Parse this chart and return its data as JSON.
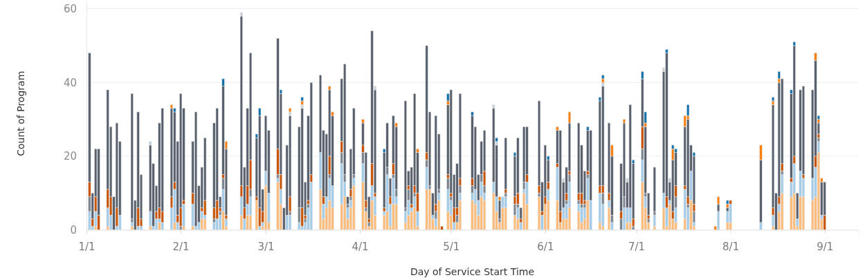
{
  "chart_data": {
    "type": "bar",
    "stacked": true,
    "xlabel": "Day of Service Start Time",
    "ylabel": "Count of Program",
    "x": [
      "--01-02",
      "--01-03",
      "--01-04",
      "--01-05",
      "--01-08",
      "--01-09",
      "--01-10",
      "--01-11",
      "--01-12",
      "--01-16",
      "--01-17",
      "--01-18",
      "--01-19",
      "--01-22",
      "--01-23",
      "--01-24",
      "--01-25",
      "--01-26",
      "--01-29",
      "--01-30",
      "--01-31",
      "--02-01",
      "--02-02",
      "--02-05",
      "--02-06",
      "--02-07",
      "--02-08",
      "--02-09",
      "--02-12",
      "--02-13",
      "--02-14",
      "--02-15",
      "--02-16",
      "--02-21",
      "--02-22",
      "--02-23",
      "--02-24",
      "--02-26",
      "--02-27",
      "--02-28",
      "--03-01",
      "--03-02",
      "--03-05",
      "--03-06",
      "--03-07",
      "--03-08",
      "--03-09",
      "--03-12",
      "--03-13",
      "--03-14",
      "--03-15",
      "--03-16",
      "--03-19",
      "--03-20",
      "--03-21",
      "--03-22",
      "--03-23",
      "--03-26",
      "--03-27",
      "--03-28",
      "--03-29",
      "--03-30",
      "--04-02",
      "--04-03",
      "--04-04",
      "--04-05",
      "--04-06",
      "--04-09",
      "--04-10",
      "--04-11",
      "--04-12",
      "--04-13",
      "--04-16",
      "--04-17",
      "--04-18",
      "--04-19",
      "--04-20",
      "--04-23",
      "--04-24",
      "--04-25",
      "--04-26",
      "--04-27",
      "--04-28",
      "--04-30",
      "--05-01",
      "--05-02",
      "--05-03",
      "--05-04",
      "--05-08",
      "--05-09",
      "--05-10",
      "--05-11",
      "--05-12",
      "--05-15",
      "--05-16",
      "--05-17",
      "--05-18",
      "--05-19",
      "--05-22",
      "--05-23",
      "--05-24",
      "--05-25",
      "--05-26",
      "--05-30",
      "--05-31",
      "--06-01",
      "--06-02",
      "--06-05",
      "--06-06",
      "--06-07",
      "--06-08",
      "--06-09",
      "--06-12",
      "--06-13",
      "--06-14",
      "--06-15",
      "--06-16",
      "--06-19",
      "--06-20",
      "--06-22",
      "--06-23",
      "--06-26",
      "--06-27",
      "--06-28",
      "--06-29",
      "--06-30",
      "--07-03",
      "--07-04",
      "--07-05",
      "--07-07",
      "--07-10",
      "--07-11",
      "--07-12",
      "--07-13",
      "--07-14",
      "--07-17",
      "--07-18",
      "--07-19",
      "--07-20",
      "--07-27",
      "--07-28",
      "--07-31",
      "--08-01",
      "--08-11",
      "--08-15",
      "--08-16",
      "--08-17",
      "--08-18",
      "--08-21",
      "--08-22",
      "--08-23",
      "--08-24",
      "--08-25",
      "--08-28",
      "--08-29",
      "--08-30",
      "--08-31",
      "--09-01"
    ],
    "series": [
      {
        "color": "#ffbc79",
        "values": [
          0,
          0,
          1,
          0,
          1,
          0,
          0,
          0,
          0,
          1,
          0,
          0,
          0,
          1,
          0,
          0,
          2,
          0,
          0,
          2,
          0,
          0,
          1,
          1,
          0,
          0,
          3,
          3,
          0,
          0,
          0,
          5,
          1,
          4,
          0,
          4,
          4,
          8,
          0,
          1,
          12,
          2,
          13,
          7,
          0,
          0,
          0,
          0,
          0,
          0,
          0,
          0,
          11,
          3,
          6,
          8,
          6,
          7,
          9,
          3,
          6,
          12,
          13,
          5,
          1,
          8,
          4,
          4,
          5,
          1,
          7,
          7,
          2,
          4,
          5,
          6,
          1,
          11,
          11,
          3,
          1,
          8,
          0,
          5,
          4,
          0,
          2,
          8,
          8,
          7,
          4,
          9,
          8,
          10,
          5,
          2,
          6,
          6,
          4,
          3,
          0,
          10,
          7,
          9,
          0,
          7,
          8,
          8,
          2,
          3,
          3,
          6,
          5,
          2,
          3,
          8,
          0,
          2,
          1,
          6,
          0,
          0,
          0,
          2,
          2,
          0,
          13,
          6,
          2,
          1,
          6,
          1,
          7,
          3,
          2,
          3,
          0,
          8,
          1,
          0,
          0,
          2,
          2,
          0,
          1,
          0,
          5,
          10,
          9,
          10,
          1,
          9,
          9,
          8,
          9,
          21,
          3,
          0
        ]
      },
      {
        "color": "#a3cce9",
        "values": [
          5,
          1,
          4,
          0,
          5,
          4,
          0,
          1,
          4,
          1,
          0,
          1,
          1,
          4,
          1,
          3,
          1,
          2,
          6,
          9,
          2,
          0,
          6,
          6,
          1,
          2,
          2,
          1,
          2,
          3,
          4,
          6,
          2,
          5,
          3,
          3,
          5,
          0,
          1,
          1,
          4,
          8,
          1,
          4,
          0,
          4,
          4,
          2,
          1,
          2,
          6,
          13,
          10,
          4,
          3,
          6,
          6,
          11,
          4,
          3,
          2,
          2,
          5,
          0,
          0,
          4,
          5,
          1,
          10,
          6,
          7,
          2,
          3,
          4,
          1,
          3,
          4,
          6,
          0,
          1,
          2,
          2,
          0,
          6,
          4,
          2,
          0,
          2,
          2,
          4,
          4,
          4,
          2,
          3,
          4,
          0,
          3,
          3,
          0,
          3,
          2,
          1,
          6,
          0,
          4,
          0,
          3,
          9,
          0,
          3,
          4,
          7,
          2,
          4,
          3,
          6,
          8,
          8,
          6,
          2,
          2,
          0,
          6,
          4,
          4,
          0,
          6,
          3,
          0,
          3,
          4,
          5,
          1,
          0,
          4,
          8,
          6,
          8,
          1,
          0,
          5,
          3,
          5,
          2,
          3,
          0,
          2,
          5,
          4,
          8,
          2,
          7,
          5,
          6,
          8,
          3,
          1,
          0
        ]
      },
      {
        "color": "#7b848f",
        "values": [
          4,
          0,
          0,
          0,
          0,
          0,
          0,
          0,
          0,
          1,
          0,
          0,
          0,
          0,
          0,
          0,
          0,
          0,
          0,
          0,
          0,
          1,
          0,
          0,
          0,
          0,
          0,
          0,
          1,
          0,
          1,
          3,
          0,
          0,
          0,
          0,
          2,
          0,
          0,
          0,
          0,
          0,
          1,
          0,
          0,
          0,
          1,
          4,
          0,
          1,
          1,
          0,
          0,
          0,
          0,
          1,
          0,
          3,
          2,
          1,
          1,
          1,
          3,
          1,
          1,
          0,
          0,
          0,
          2,
          0,
          1,
          2,
          1,
          3,
          0,
          1,
          0,
          2,
          1,
          0,
          2,
          1,
          0,
          3,
          1,
          0,
          2,
          2,
          2,
          0,
          0,
          2,
          2,
          0,
          0,
          1,
          0,
          1,
          3,
          1,
          0,
          2,
          0,
          1,
          0,
          0,
          0,
          0,
          0,
          0,
          1,
          2,
          1,
          1,
          1,
          1,
          0,
          0,
          3,
          0,
          2,
          3,
          3,
          0,
          0,
          1,
          3,
          1,
          1,
          1,
          0,
          0,
          0,
          0,
          3,
          0,
          1,
          0,
          3,
          0,
          0,
          0,
          0,
          0,
          0,
          0,
          0,
          1,
          0,
          0,
          0,
          0,
          0,
          0,
          0,
          1,
          0,
          0
        ]
      },
      {
        "color": "#c85200",
        "values": [
          4,
          2,
          4,
          4,
          5,
          5,
          0,
          5,
          0,
          0,
          0,
          5,
          2,
          0,
          0,
          2,
          3,
          3,
          3,
          2,
          2,
          5,
          1,
          3,
          0,
          0,
          1,
          4,
          3,
          5,
          1,
          1,
          1,
          3,
          3,
          5,
          8,
          1,
          5,
          3,
          0,
          0,
          7,
          4,
          0,
          0,
          4,
          0,
          5,
          1,
          1,
          2,
          0,
          2,
          0,
          5,
          0,
          3,
          0,
          0,
          2,
          0,
          2,
          2,
          1,
          6,
          1,
          1,
          0,
          2,
          3,
          0,
          0,
          1,
          1,
          2,
          5,
          2,
          0,
          0,
          2,
          0,
          1,
          1,
          1,
          4,
          2,
          2,
          2,
          0,
          0,
          0,
          4,
          0,
          0,
          0,
          0,
          1,
          2,
          3,
          1,
          0,
          2,
          2,
          1,
          2,
          2,
          1,
          3,
          0,
          2,
          1,
          2,
          3,
          1,
          1,
          0,
          2,
          2,
          2,
          0,
          2,
          0,
          0,
          0,
          2,
          6,
          0,
          1,
          0,
          0,
          3,
          0,
          2,
          3,
          1,
          2,
          0,
          2,
          0,
          0,
          0,
          1,
          0,
          2,
          0,
          2,
          2,
          1,
          2,
          0,
          0,
          1,
          0,
          3,
          1,
          0,
          4
        ]
      },
      {
        "color": "#57606c",
        "values": [
          35,
          7,
          13,
          18,
          27,
          19,
          9,
          23,
          20,
          34,
          8,
          26,
          12,
          18,
          17,
          7,
          23,
          28,
          24,
          19,
          20,
          31,
          25,
          14,
          31,
          10,
          11,
          17,
          23,
          25,
          3,
          24,
          18,
          46,
          11,
          21,
          29,
          16,
          25,
          6,
          15,
          17,
          30,
          22,
          6,
          19,
          22,
          22,
          27,
          9,
          23,
          25,
          21,
          18,
          17,
          18,
          19,
          17,
          30,
          2,
          11,
          18,
          6,
          13,
          6,
          36,
          28,
          15,
          12,
          5,
          13,
          17,
          29,
          4,
          10,
          25,
          11,
          29,
          20,
          6,
          24,
          15,
          0,
          19,
          28,
          9,
          12,
          23,
          17,
          17,
          7,
          9,
          11,
          20,
          14,
          5,
          0,
          14,
          11,
          15,
          3,
          15,
          13,
          23,
          8,
          14,
          6,
          9,
          22,
          7,
          7,
          13,
          19,
          13,
          8,
          11,
          19,
          23,
          27,
          19,
          16,
          13,
          20,
          7,
          28,
          15,
          13,
          18,
          6,
          12,
          33,
          39,
          5,
          14,
          9,
          16,
          21,
          7,
          13,
          0,
          2,
          1,
          0,
          17,
          28,
          10,
          31,
          23,
          23,
          30,
          7,
          22,
          24,
          24,
          26,
          3,
          9,
          9
        ]
      },
      {
        "color": "#c8d0d9",
        "values": [
          0,
          0,
          0,
          0,
          0,
          0,
          0,
          0,
          0,
          0,
          0,
          0,
          0,
          1,
          0,
          0,
          0,
          0,
          0,
          0,
          0,
          0,
          0,
          0,
          0,
          0,
          0,
          0,
          0,
          0,
          0,
          0,
          0,
          1,
          0,
          0,
          0,
          0,
          0,
          0,
          0,
          0,
          0,
          0,
          0,
          0,
          1,
          0,
          1,
          0,
          0,
          0,
          0,
          0,
          0,
          0,
          0,
          0,
          0,
          0,
          0,
          0,
          0,
          0,
          0,
          0,
          1,
          0,
          0,
          0,
          0,
          0,
          0,
          0,
          0,
          0,
          0,
          0,
          0,
          0,
          0,
          0,
          0,
          0,
          0,
          0,
          0,
          0,
          0,
          0,
          0,
          0,
          0,
          1,
          1,
          0,
          0,
          0,
          0,
          0,
          0,
          0,
          0,
          0,
          0,
          0,
          0,
          0,
          0,
          1,
          0,
          0,
          0,
          0,
          0,
          0,
          0,
          0,
          1,
          0,
          0,
          0,
          0,
          1,
          0,
          0,
          0,
          0,
          0,
          0,
          1,
          0,
          1,
          0,
          0,
          0,
          0,
          0,
          0,
          0,
          0,
          0,
          0,
          0,
          0,
          0,
          0,
          0,
          0,
          0,
          0,
          0,
          0,
          0,
          0,
          0,
          0,
          0
        ]
      },
      {
        "color": "#fc7d0b",
        "values": [
          0,
          0,
          0,
          0,
          0,
          0,
          0,
          0,
          0,
          0,
          0,
          0,
          0,
          0,
          0,
          0,
          0,
          0,
          1,
          0,
          0,
          0,
          0,
          0,
          0,
          0,
          0,
          0,
          0,
          0,
          0,
          0,
          2,
          0,
          0,
          0,
          0,
          0,
          0,
          0,
          0,
          0,
          0,
          0,
          0,
          0,
          1,
          0,
          1,
          0,
          0,
          0,
          0,
          0,
          0,
          1,
          1,
          0,
          0,
          0,
          0,
          0,
          1,
          0,
          0,
          0,
          0,
          0,
          0,
          0,
          0,
          1,
          0,
          0,
          0,
          0,
          1,
          0,
          0,
          0,
          0,
          0,
          0,
          1,
          0,
          0,
          0,
          0,
          0,
          0,
          0,
          0,
          0,
          0,
          0,
          1,
          0,
          0,
          0,
          0,
          0,
          0,
          0,
          0,
          0,
          0,
          0,
          1,
          0,
          0,
          0,
          3,
          0,
          0,
          0,
          0,
          0,
          0,
          1,
          0,
          3,
          0,
          1,
          0,
          0,
          0,
          0,
          1,
          0,
          0,
          0,
          0,
          0,
          3,
          0,
          3,
          1,
          0,
          0,
          1,
          2,
          1,
          0,
          4,
          1,
          0,
          1,
          0,
          0,
          0,
          0,
          0,
          0,
          0,
          2,
          1,
          1,
          0
        ]
      },
      {
        "color": "#1170aa",
        "values": [
          0,
          0,
          0,
          0,
          0,
          0,
          0,
          0,
          0,
          0,
          0,
          0,
          0,
          0,
          0,
          0,
          0,
          0,
          0,
          1,
          0,
          0,
          0,
          0,
          0,
          0,
          0,
          0,
          0,
          0,
          0,
          2,
          0,
          0,
          0,
          0,
          0,
          1,
          2,
          0,
          0,
          0,
          0,
          1,
          0,
          0,
          0,
          0,
          1,
          0,
          0,
          0,
          0,
          0,
          0,
          0,
          0,
          0,
          0,
          0,
          0,
          0,
          0,
          0,
          0,
          0,
          0,
          1,
          0,
          0,
          0,
          0,
          0,
          0,
          0,
          0,
          0,
          0,
          0,
          0,
          0,
          0,
          0,
          2,
          0,
          0,
          0,
          0,
          1,
          0,
          0,
          0,
          0,
          0,
          1,
          0,
          0,
          0,
          1,
          0,
          0,
          0,
          0,
          0,
          0,
          0,
          1,
          0,
          0,
          0,
          0,
          0,
          0,
          0,
          0,
          1,
          0,
          1,
          1,
          0,
          0,
          0,
          0,
          0,
          0,
          1,
          2,
          3,
          0,
          0,
          0,
          1,
          0,
          1,
          1,
          0,
          3,
          0,
          1,
          0,
          0,
          1,
          0,
          0,
          1,
          0,
          2,
          0,
          1,
          1,
          0,
          0,
          0,
          0,
          0,
          1,
          0,
          0
        ]
      }
    ],
    "xlim": [
      "--01-01",
      "--09-12"
    ],
    "xticks": [
      {
        "value": "--01-01",
        "label": "1/1"
      },
      {
        "value": "--02-01",
        "label": "2/1"
      },
      {
        "value": "--03-01",
        "label": "3/1"
      },
      {
        "value": "--04-01",
        "label": "4/1"
      },
      {
        "value": "--05-01",
        "label": "5/1"
      },
      {
        "value": "--06-01",
        "label": "6/1"
      },
      {
        "value": "--07-01",
        "label": "7/1"
      },
      {
        "value": "--08-01",
        "label": "8/1"
      },
      {
        "value": "--09-01",
        "label": "9/1"
      }
    ],
    "ylim": [
      0,
      62
    ],
    "yticks": [
      0,
      20,
      40,
      60
    ],
    "grid": "y"
  }
}
